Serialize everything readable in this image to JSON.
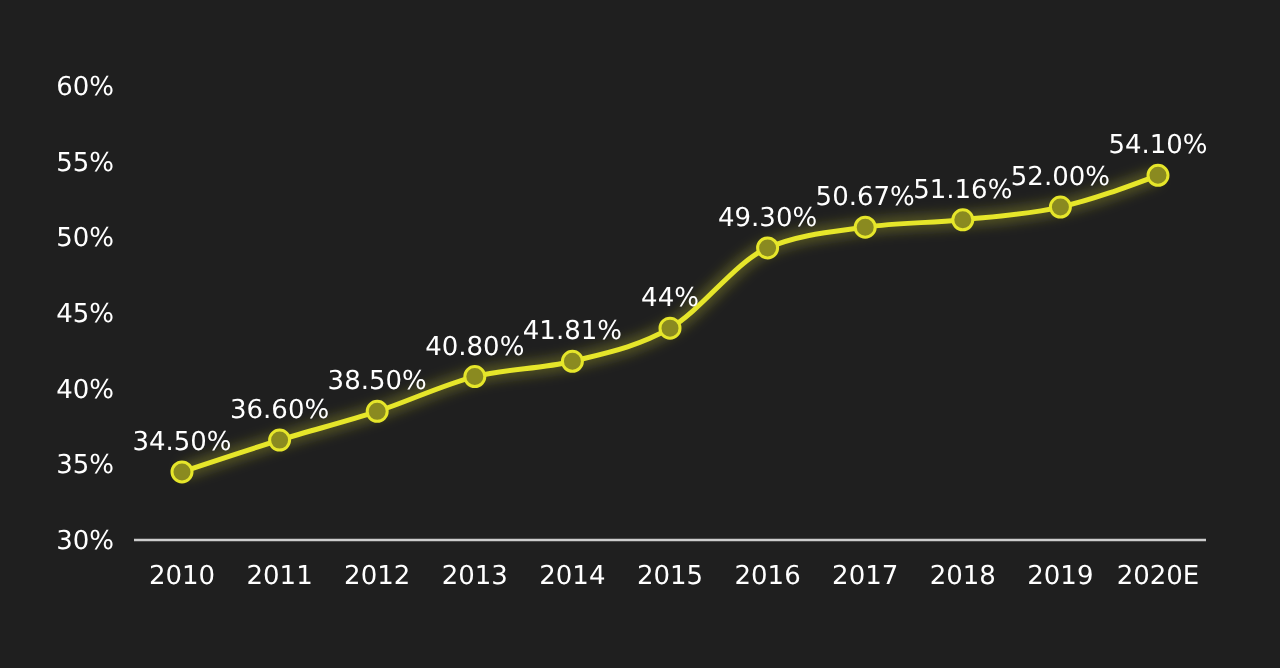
{
  "chart_data": {
    "type": "line",
    "categories": [
      "2010",
      "2011",
      "2012",
      "2013",
      "2014",
      "2015",
      "2016",
      "2017",
      "2018",
      "2019",
      "2020E"
    ],
    "series": [
      {
        "color": "#e6e62a",
        "values": [
          34.5,
          36.6,
          38.5,
          40.8,
          41.81,
          44,
          49.3,
          50.67,
          51.16,
          52.0,
          54.1
        ],
        "value_labels": [
          "34.50%",
          "36.60%",
          "38.50%",
          "40.80%",
          "41.81%",
          "44%",
          "49.30%",
          "50.67%",
          "51.16%",
          "52.00%",
          "54.10%"
        ]
      }
    ],
    "ylim": [
      30,
      60
    ],
    "yticks": [
      {
        "value": 30,
        "label": "30%"
      },
      {
        "value": 35,
        "label": "35%"
      },
      {
        "value": 40,
        "label": "40%"
      },
      {
        "value": 45,
        "label": "45%"
      },
      {
        "value": 50,
        "label": "50%"
      },
      {
        "value": 55,
        "label": "55%"
      },
      {
        "value": 60,
        "label": "60%"
      }
    ],
    "grid": false,
    "marker": "circle",
    "line_style": "solid"
  }
}
